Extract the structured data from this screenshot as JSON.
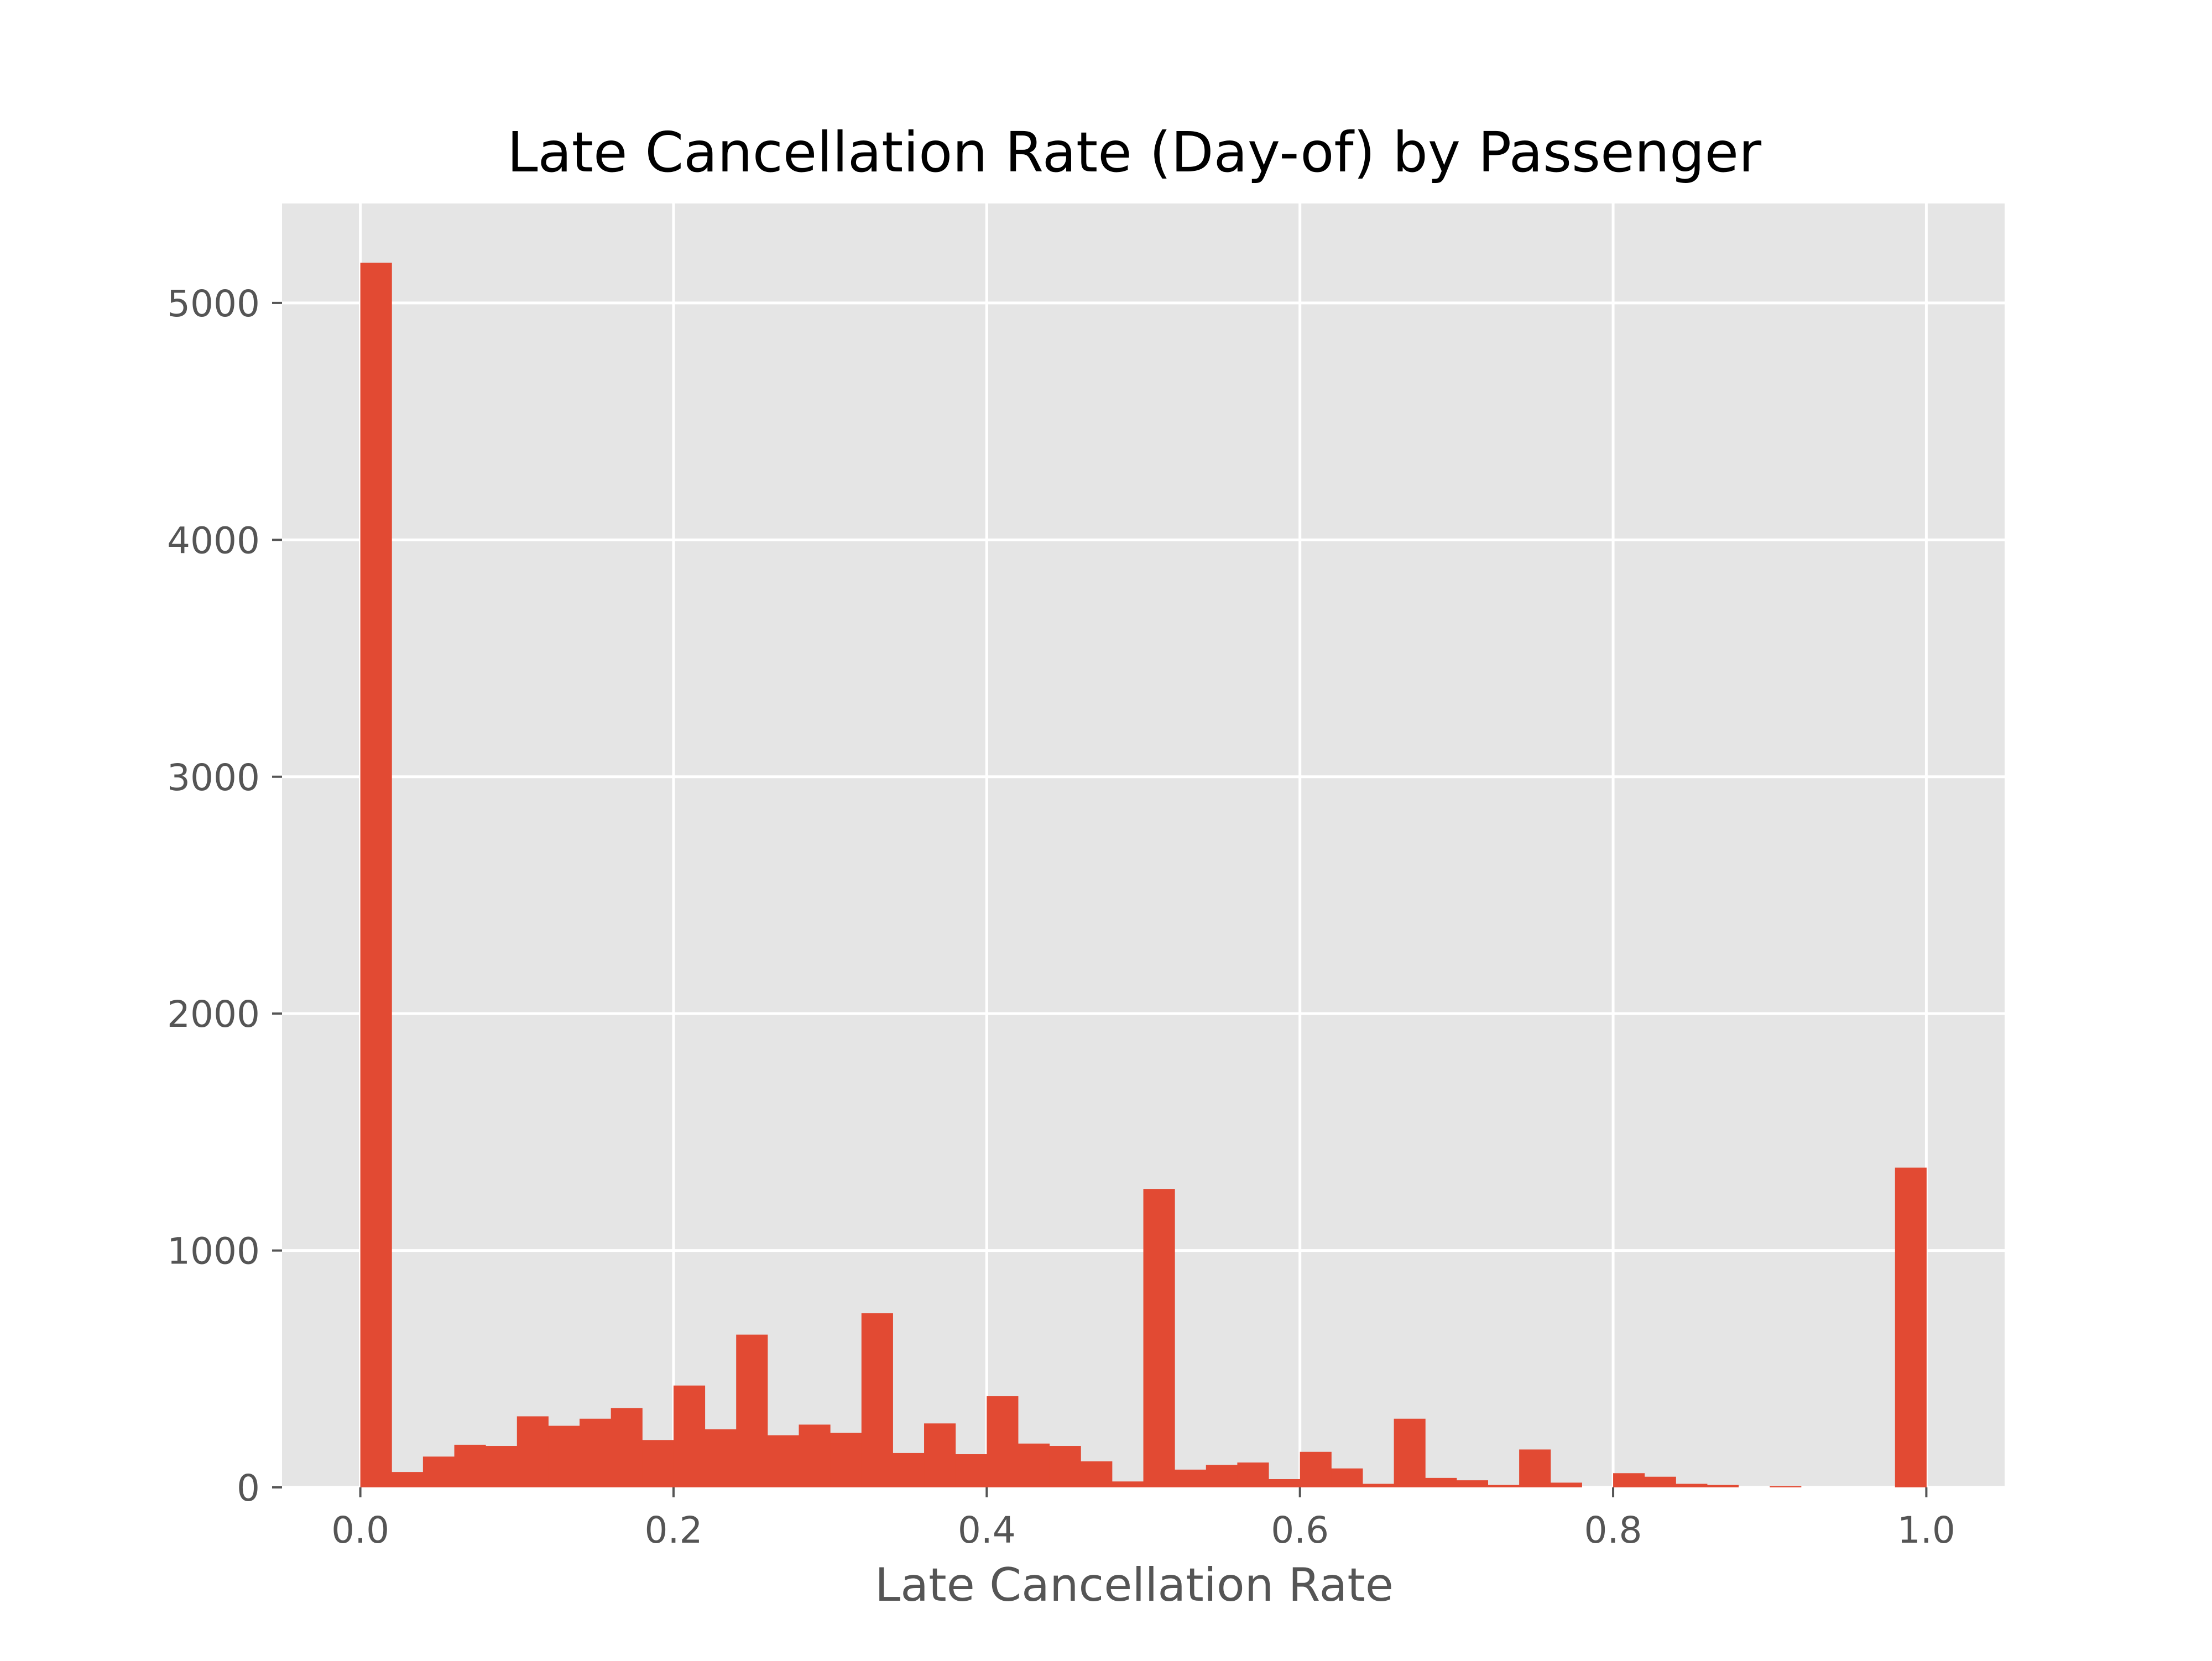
{
  "chart_data": {
    "type": "bar",
    "title": "Late Cancellation Rate (Day-of) by Passenger",
    "xlabel": "Late Cancellation Rate",
    "ylabel": "",
    "xlim": [
      -0.05,
      1.05
    ],
    "ylim": [
      0,
      5420
    ],
    "grid": true,
    "legend": "none",
    "bin_width": 0.02,
    "bin_start": 0.0,
    "values": [
      5170,
      65,
      130,
      180,
      175,
      300,
      260,
      290,
      335,
      200,
      430,
      245,
      645,
      220,
      265,
      230,
      735,
      145,
      270,
      140,
      385,
      185,
      175,
      110,
      25,
      1260,
      75,
      95,
      105,
      35,
      150,
      80,
      15,
      290,
      40,
      30,
      10,
      160,
      20,
      0,
      60,
      45,
      15,
      10,
      0,
      5,
      0,
      0,
      0,
      1350
    ],
    "xticks": [
      {
        "value": 0.0,
        "label": "0.0"
      },
      {
        "value": 0.2,
        "label": "0.2"
      },
      {
        "value": 0.4,
        "label": "0.4"
      },
      {
        "value": 0.6,
        "label": "0.6"
      },
      {
        "value": 0.8,
        "label": "0.8"
      },
      {
        "value": 1.0,
        "label": "1.0"
      }
    ],
    "yticks": [
      {
        "value": 0,
        "label": "0"
      },
      {
        "value": 1000,
        "label": "1000"
      },
      {
        "value": 2000,
        "label": "2000"
      },
      {
        "value": 3000,
        "label": "3000"
      },
      {
        "value": 4000,
        "label": "4000"
      },
      {
        "value": 5000,
        "label": "5000"
      }
    ],
    "colors": {
      "bar": "#e24a33",
      "plot_background": "#e5e5e5",
      "grid": "#ffffff",
      "tick_label": "#555555",
      "title": "#000000"
    }
  }
}
